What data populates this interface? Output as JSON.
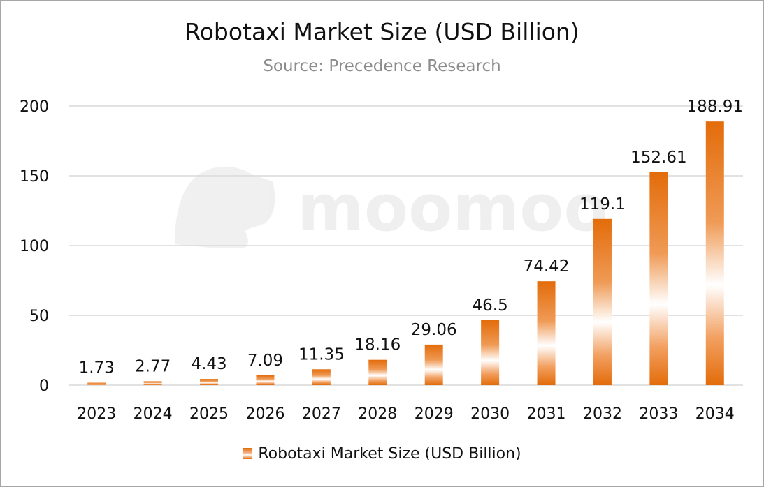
{
  "chart_data": {
    "type": "bar",
    "title": "Robotaxi Market Size (USD Billion)",
    "subtitle": "Source: Precedence Research",
    "categories": [
      "2023",
      "2024",
      "2025",
      "2026",
      "2027",
      "2028",
      "2029",
      "2030",
      "2031",
      "2032",
      "2033",
      "2034"
    ],
    "series": [
      {
        "name": "Robotaxi Market Size (USD Billion)",
        "values": [
          1.73,
          2.77,
          4.43,
          7.09,
          11.35,
          18.16,
          29.06,
          46.5,
          74.42,
          119.1,
          152.61,
          188.91
        ],
        "labels": [
          "1.73",
          "2.77",
          "4.43",
          "7.09",
          "11.35",
          "18.16",
          "29.06",
          "46.5",
          "74.42",
          "119.1",
          "152.61",
          "188.91"
        ]
      }
    ],
    "ylim": [
      0,
      200
    ],
    "yticks": [
      0,
      50,
      100,
      150,
      200
    ],
    "grid": true,
    "legend": "bottom",
    "colors": {
      "bar": "#e36c0a",
      "bar_mid": "#ffffff",
      "grid": "#d9d9d9"
    }
  },
  "watermark": {
    "text": "moomoo"
  }
}
